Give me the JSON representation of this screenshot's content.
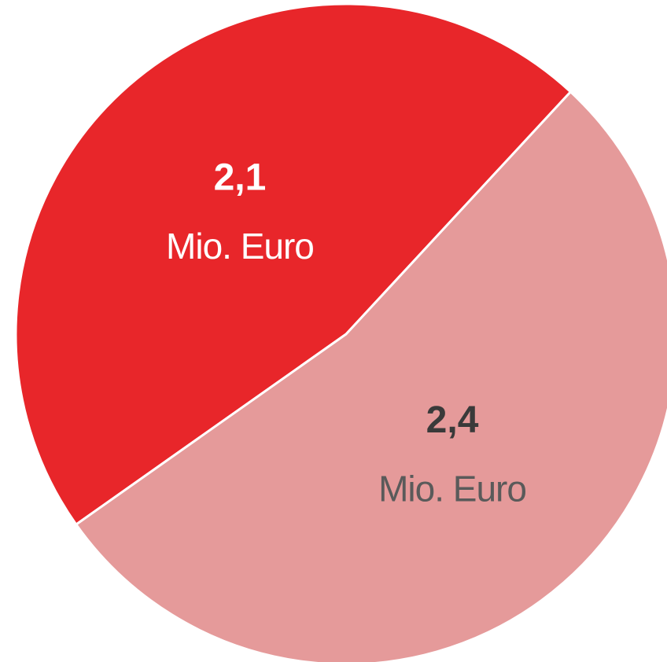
{
  "chart_data": {
    "type": "pie",
    "values": [
      2.1,
      2.4
    ],
    "value_labels": [
      "2,1",
      "2,4"
    ],
    "unit_label": "Mio. Euro",
    "colors": [
      "#e8262a",
      "#e59a9a"
    ],
    "label_colors": [
      "#ffffff",
      "#3a3a3a"
    ],
    "unit_colors": [
      "#ffffff",
      "#5a5a5a"
    ]
  }
}
